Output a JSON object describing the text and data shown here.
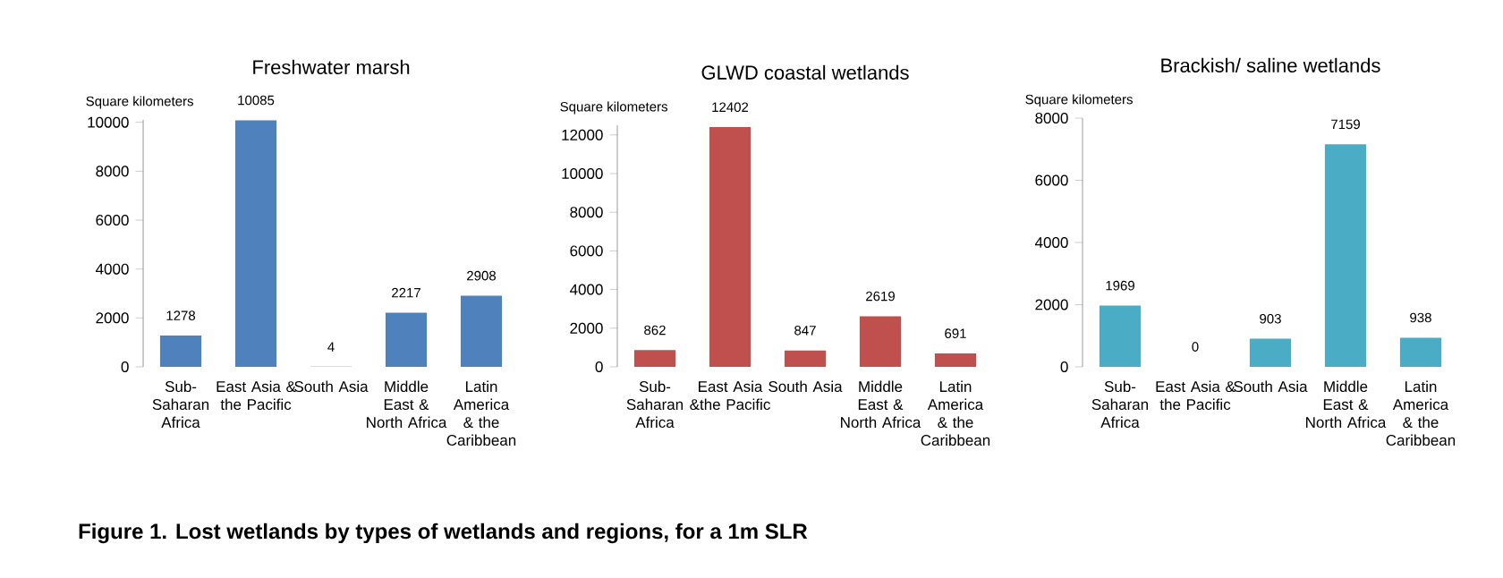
{
  "chart_data": [
    {
      "type": "bar",
      "title": "Freshwater marsh",
      "ylabel": "Square kilometers",
      "categories": [
        "Sub-Saharan Africa",
        "East Asia & the Pacific",
        "South Asia",
        "Middle East & North Africa",
        "Latin America & the Caribbean"
      ],
      "values": [
        1278,
        10085,
        4,
        2217,
        2908
      ],
      "color": "#4f81bd",
      "ylim": [
        0,
        10100
      ],
      "yticks": [
        0,
        2000,
        4000,
        6000,
        8000,
        10000
      ],
      "data_labels": true,
      "annotations": [
        "Figure 1. Lost wetlands by types of wetlands and regions, for a 1m SLR"
      ]
    },
    {
      "type": "bar",
      "title": "GLWD coastal wetlands",
      "ylabel": "Square kilometers",
      "categories": [
        "Sub-Saharan Africa",
        "East Asia &the Pacific",
        "South Asia",
        "Middle East & North Africa",
        "Latin America & the Caribbean"
      ],
      "values": [
        862,
        12402,
        847,
        2619,
        691
      ],
      "color": "#c0504d",
      "ylim": [
        0,
        12500
      ],
      "yticks": [
        0,
        2000,
        4000,
        6000,
        8000,
        10000,
        12000
      ],
      "data_labels": true
    },
    {
      "type": "bar",
      "title": "Brackish/ saline wetlands",
      "ylabel": "Square kilometers",
      "categories": [
        "Sub-Saharan Africa",
        "East Asia & the Pacific",
        "South Asia",
        "Middle East & North Africa",
        "Latin America & the Caribbean"
      ],
      "values": [
        1969,
        0,
        903,
        7159,
        938
      ],
      "color": "#4bacc6",
      "ylim": [
        0,
        8000
      ],
      "yticks": [
        0,
        2000,
        4000,
        6000,
        8000
      ],
      "data_labels": true
    }
  ]
}
